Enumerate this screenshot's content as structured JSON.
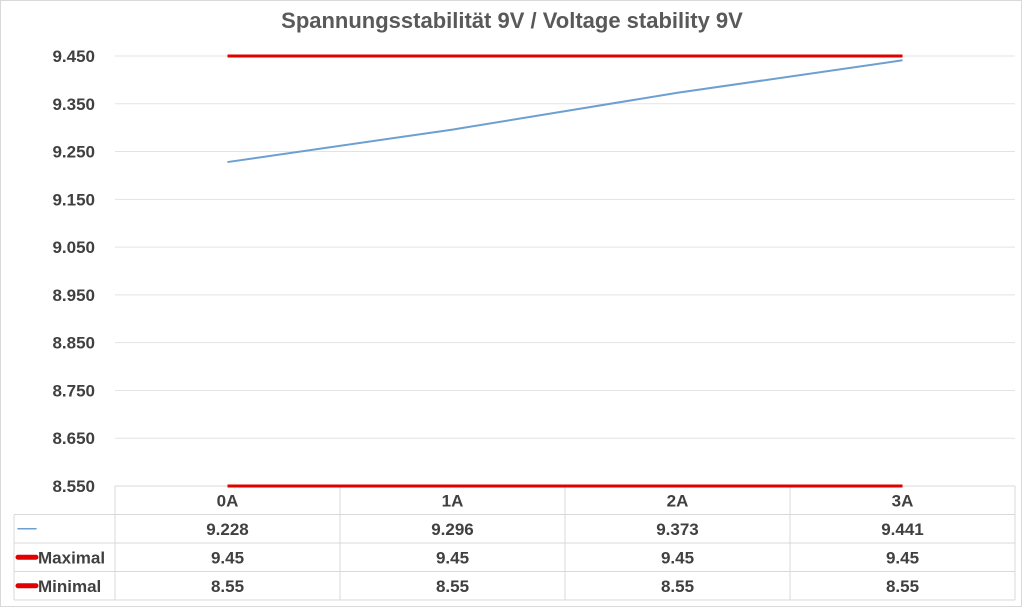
{
  "chart_data": {
    "type": "line",
    "title": "Spannungsstabilität 9V / Voltage stability 9V",
    "categories": [
      "0A",
      "1A",
      "2A",
      "3A"
    ],
    "ylim": [
      8.55,
      9.45
    ],
    "yticks": [
      "9.450",
      "9.350",
      "9.250",
      "9.150",
      "9.050",
      "8.950",
      "8.850",
      "8.750",
      "8.650",
      "8.550"
    ],
    "ytick_values": [
      9.45,
      9.35,
      9.25,
      9.15,
      9.05,
      8.95,
      8.85,
      8.75,
      8.65,
      8.55
    ],
    "grid": true,
    "legend": "data-table",
    "series": [
      {
        "name": "",
        "values": [
          9.228,
          9.296,
          9.373,
          9.441
        ],
        "labels": [
          "9.228",
          "9.296",
          "9.373",
          "9.441"
        ],
        "color": "#6d9fd0"
      },
      {
        "name": "Maximal",
        "values": [
          9.45,
          9.45,
          9.45,
          9.45
        ],
        "labels": [
          "9.45",
          "9.45",
          "9.45",
          "9.45"
        ],
        "color": "#e00000"
      },
      {
        "name": "Minimal",
        "values": [
          8.55,
          8.55,
          8.55,
          8.55
        ],
        "labels": [
          "8.55",
          "8.55",
          "8.55",
          "8.55"
        ],
        "color": "#e00000"
      }
    ]
  }
}
